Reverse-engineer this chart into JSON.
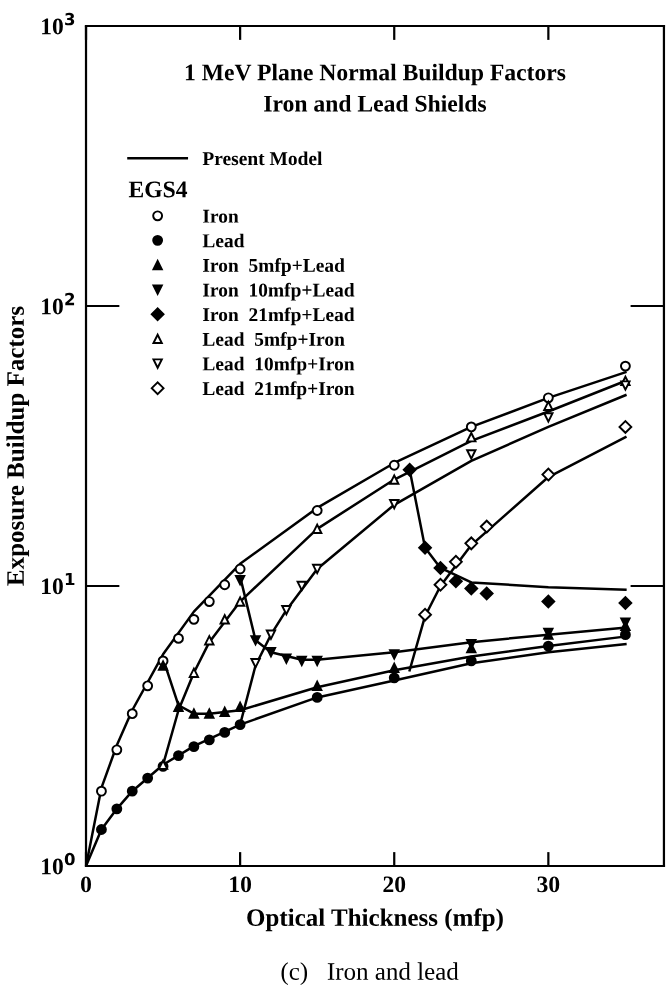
{
  "chart_data": {
    "type": "line",
    "title": "1 MeV Plane Normal Buildup Factors\nIron and Lead Shields",
    "xlabel": "Optical Thickness (mfp)",
    "ylabel": "Exposure Buildup Factors",
    "legend_title": "EGS4",
    "annotations": [
      "(c)   Iron and lead"
    ],
    "xlim": [
      0,
      37.5
    ],
    "xticks": [
      0,
      10,
      20,
      30
    ],
    "ylim": [
      1,
      1000
    ],
    "yticks": [
      {
        "value": 1,
        "label": "10$^{0}$"
      },
      {
        "value": 10,
        "label": "10$^{1}$"
      },
      {
        "value": 100,
        "label": "10$^{2}$"
      },
      {
        "value": 1000,
        "label": "10$^{3}$"
      }
    ],
    "log": "y",
    "grid": false,
    "legend": "top left",
    "series": [
      {
        "name": "Present Model",
        "color": "#000000",
        "x": [
          0,
          1,
          2,
          3,
          5,
          7,
          10,
          15,
          20,
          25,
          30,
          35
        ],
        "values": [
          1,
          1.9,
          2.7,
          3.6,
          5.7,
          8.1,
          12,
          19,
          27.5,
          37,
          47,
          58
        ]
      },
      {
        "color": "#000000",
        "x": [
          0,
          1,
          2,
          3,
          5,
          7,
          10,
          15,
          20,
          25,
          30,
          35
        ],
        "values": [
          1,
          1.35,
          1.6,
          1.85,
          2.3,
          2.68,
          3.2,
          4.0,
          4.6,
          5.3,
          5.8,
          6.2
        ]
      },
      {
        "color": "#000000",
        "x": [
          5,
          6,
          7,
          8,
          10,
          15,
          20,
          25,
          30,
          35
        ],
        "values": [
          5.5,
          3.75,
          3.5,
          3.5,
          3.6,
          4.35,
          5.0,
          5.6,
          6.1,
          6.6
        ]
      },
      {
        "color": "#000000",
        "x": [
          10,
          11,
          12,
          14,
          15,
          20,
          25,
          30,
          35
        ],
        "values": [
          10.8,
          6.4,
          5.8,
          5.45,
          5.45,
          5.8,
          6.3,
          6.7,
          7.1
        ]
      },
      {
        "color": "#000000",
        "x": [
          21,
          22,
          23,
          25,
          30,
          35
        ],
        "values": [
          26,
          13.7,
          11.6,
          10.3,
          9.9,
          9.7
        ]
      },
      {
        "color": "#000000",
        "x": [
          5,
          6,
          7,
          8,
          10,
          15,
          20,
          25,
          30,
          35
        ],
        "values": [
          2.3,
          3.6,
          4.9,
          6.3,
          8.8,
          16,
          24,
          33,
          42,
          54
        ]
      },
      {
        "color": "#000000",
        "x": [
          10,
          11,
          12,
          13,
          15,
          20,
          25,
          30,
          35
        ],
        "values": [
          3.2,
          5.2,
          6.7,
          8.2,
          11.5,
          19.5,
          28,
          37,
          48
        ]
      },
      {
        "color": "#000000",
        "x": [
          21,
          22,
          23,
          25,
          30,
          35
        ],
        "values": [
          5.0,
          7.8,
          10,
          14,
          24.5,
          34
        ]
      },
      {
        "name": "Iron",
        "type": "scatter",
        "marker": "circle-open",
        "color": "#000000",
        "x": [
          1,
          2,
          3,
          4,
          5,
          6,
          7,
          8,
          9,
          10,
          15,
          20,
          25,
          30,
          35
        ],
        "values": [
          1.85,
          2.6,
          3.5,
          4.4,
          5.4,
          6.5,
          7.6,
          8.8,
          10.1,
          11.5,
          18.6,
          27,
          37,
          47,
          61
        ]
      },
      {
        "name": "Lead",
        "type": "scatter",
        "marker": "circle",
        "color": "#000000",
        "x": [
          1,
          2,
          3,
          4,
          5,
          6,
          7,
          8,
          9,
          10,
          15,
          20,
          25,
          30,
          35
        ],
        "values": [
          1.35,
          1.6,
          1.85,
          2.06,
          2.27,
          2.48,
          2.67,
          2.82,
          3.0,
          3.2,
          4.0,
          4.7,
          5.4,
          6.1,
          6.7
        ]
      },
      {
        "name": "Iron  5mfp+Lead",
        "type": "scatter",
        "marker": "triangle",
        "color": "#000000",
        "x": [
          5,
          6,
          7,
          8,
          9,
          10,
          15,
          20,
          25,
          30,
          35
        ],
        "values": [
          5.2,
          3.7,
          3.5,
          3.5,
          3.55,
          3.7,
          4.4,
          5.1,
          6.0,
          6.7,
          7.2
        ]
      },
      {
        "name": "Iron  10mfp+Lead",
        "type": "scatter",
        "marker": "triangle-down",
        "color": "#000000",
        "x": [
          10,
          11,
          12,
          13,
          14,
          15,
          20,
          25,
          30,
          35
        ],
        "values": [
          10.5,
          6.4,
          5.8,
          5.5,
          5.4,
          5.4,
          5.7,
          6.2,
          6.8,
          7.4
        ]
      },
      {
        "name": "Iron  21mfp+Lead",
        "type": "scatter",
        "marker": "diamond",
        "color": "#000000",
        "x": [
          21,
          22,
          23,
          24,
          25,
          26,
          30,
          35
        ],
        "values": [
          26,
          13.7,
          11.6,
          10.4,
          9.8,
          9.4,
          8.8,
          8.7
        ]
      },
      {
        "name": "Lead  5mfp+Iron",
        "type": "scatter",
        "marker": "triangle-open",
        "color": "#000000",
        "x": [
          5,
          7,
          8,
          9,
          10,
          15,
          20,
          25,
          30,
          35
        ],
        "values": [
          2.3,
          4.9,
          6.4,
          7.6,
          8.8,
          16,
          24,
          34,
          44,
          54
        ]
      },
      {
        "name": "Lead  10mfp+Iron",
        "type": "scatter",
        "marker": "triangle-down-open",
        "color": "#000000",
        "x": [
          11,
          12,
          13,
          14,
          15,
          20,
          25,
          30,
          35
        ],
        "values": [
          5.3,
          6.7,
          8.2,
          10,
          11.5,
          19.6,
          29.5,
          40,
          52
        ]
      },
      {
        "name": "Lead  21mfp+Iron",
        "type": "scatter",
        "marker": "diamond-open",
        "color": "#000000",
        "x": [
          22,
          23,
          24,
          25,
          26,
          30,
          35
        ],
        "values": [
          7.9,
          10.1,
          12.2,
          14.2,
          16.3,
          25,
          37
        ]
      }
    ]
  }
}
